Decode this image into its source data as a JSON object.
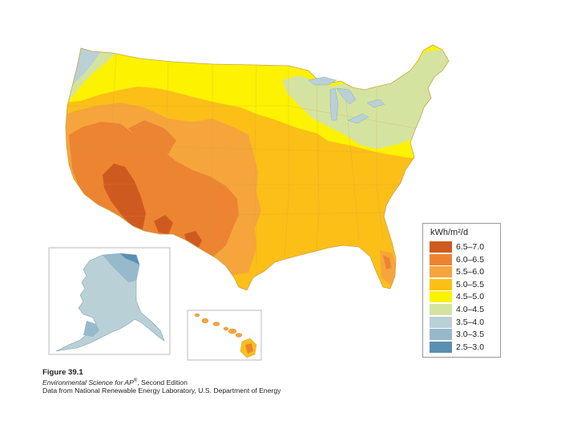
{
  "legend": {
    "title": "kWh/m²/d",
    "classes": [
      {
        "label": "6.5–7.0",
        "color": "#cf5a1f"
      },
      {
        "label": "6.0–6.5",
        "color": "#ec8432"
      },
      {
        "label": "5.5–6.0",
        "color": "#f5a53c"
      },
      {
        "label": "5.0–5.5",
        "color": "#fbbf18"
      },
      {
        "label": "4.5–5.0",
        "color": "#fdf200"
      },
      {
        "label": "4.0–4.5",
        "color": "#d5e3a0"
      },
      {
        "label": "3.5–4.0",
        "color": "#b9d1d6"
      },
      {
        "label": "3.0–3.5",
        "color": "#97b9cc"
      },
      {
        "label": "2.5–3.0",
        "color": "#5a8fb2"
      }
    ]
  },
  "caption": {
    "figure": "Figure 39.1",
    "book_title": "Environmental Science for AP",
    "book_title_sup": "®",
    "edition": ", Second Edition",
    "source": "Data from National Renewable Energy Laboratory, U.S. Department of Energy"
  }
}
